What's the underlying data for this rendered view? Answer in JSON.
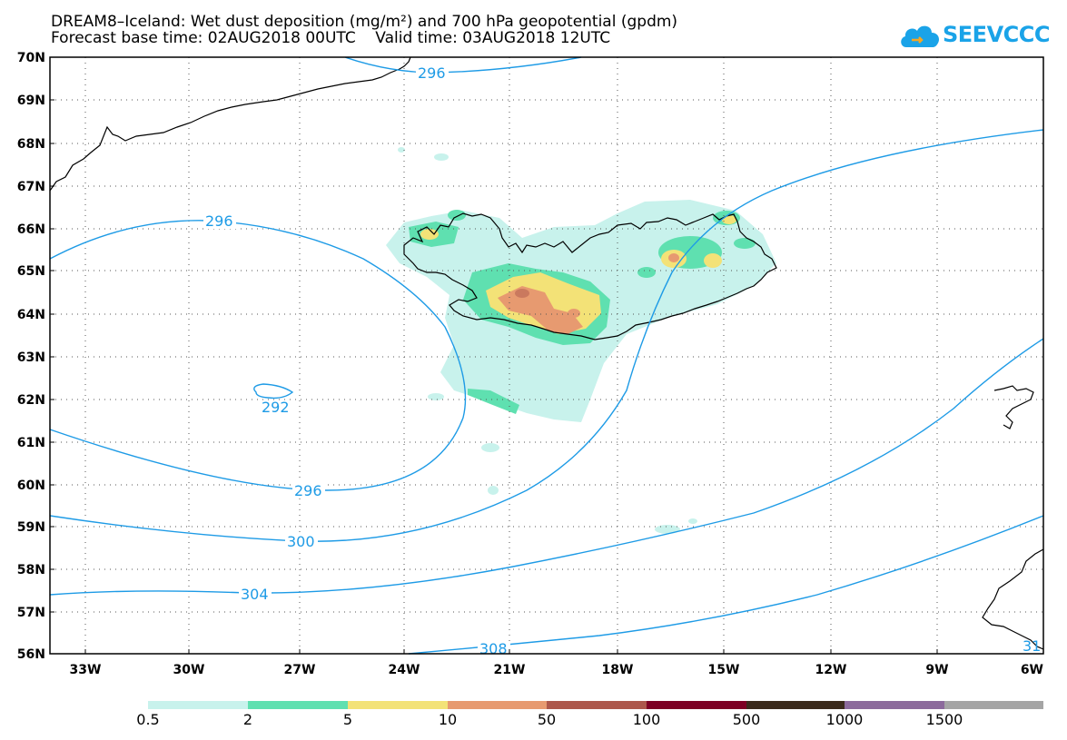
{
  "title": {
    "line1": "DREAM8–Iceland: Wet dust deposition (mg/m²) and 700 hPa geopotential (gpdm)",
    "line2": "Forecast base time: 02AUG2018 00UTC    Valid time: 03AUG2018 12UTC"
  },
  "logo": {
    "text": "SEEVCCC",
    "icon": "cloud-logo-icon",
    "color": "#1aa3e8"
  },
  "map": {
    "lat_labels": [
      "70N",
      "69N",
      "68N",
      "67N",
      "66N",
      "65N",
      "64N",
      "63N",
      "62N",
      "61N",
      "60N",
      "59N",
      "58N",
      "57N",
      "56N"
    ],
    "lon_labels": [
      "33W",
      "30W",
      "27W",
      "24W",
      "21W",
      "18W",
      "15W",
      "12W",
      "9W",
      "6W"
    ],
    "contour_labels": [
      "296",
      "296",
      "292",
      "296",
      "300",
      "304",
      "308",
      "31"
    ],
    "contour_color": "#1e9be6"
  },
  "legend": {
    "colors": [
      "#c8f2ec",
      "#5fe0b0",
      "#f3e277",
      "#e79a70",
      "#ad574b",
      "#7d0024",
      "#3b2a1c",
      "#8c6a9c",
      "#a5a5a5"
    ],
    "labels": [
      "0.5",
      "2",
      "5",
      "10",
      "50",
      "100",
      "500",
      "1000",
      "1500"
    ]
  }
}
